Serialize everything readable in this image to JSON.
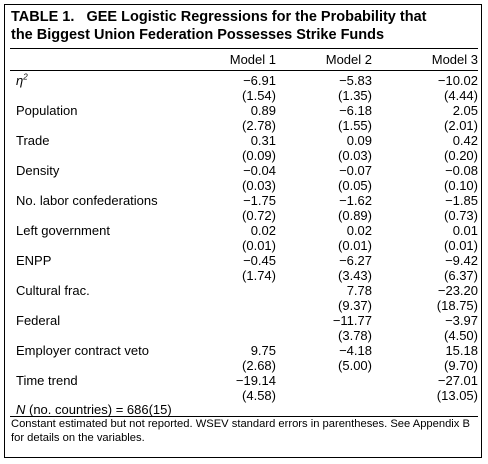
{
  "title": {
    "label": "TABLE 1.",
    "line1": "GEE Logistic Regressions for the Probability that",
    "line2": "the Biggest Union Federation Possesses Strike Funds"
  },
  "columns": [
    "Model 1",
    "Model 2",
    "Model 3"
  ],
  "rows": [
    {
      "var": "η",
      "sup": "2",
      "coef": [
        "−6.91",
        "−5.83",
        "−10.02"
      ],
      "se": [
        "(1.54)",
        "(1.35)",
        "(4.44)"
      ]
    },
    {
      "var": "Population",
      "coef": [
        "0.89",
        "−6.18",
        "2.05"
      ],
      "se": [
        "(2.78)",
        "(1.55)",
        "(2.01)"
      ]
    },
    {
      "var": "Trade",
      "coef": [
        "0.31",
        "0.09",
        "0.42"
      ],
      "se": [
        "(0.09)",
        "(0.03)",
        "(0.20)"
      ]
    },
    {
      "var": "Density",
      "coef": [
        "−0.04",
        "−0.07",
        "−0.08"
      ],
      "se": [
        "(0.03)",
        "(0.05)",
        "(0.10)"
      ]
    },
    {
      "var": "No. labor confederations",
      "coef": [
        "−1.75",
        "−1.62",
        "−1.85"
      ],
      "se": [
        "(0.72)",
        "(0.89)",
        "(0.73)"
      ]
    },
    {
      "var": "Left government",
      "coef": [
        "0.02",
        "0.02",
        "0.01"
      ],
      "se": [
        "(0.01)",
        "(0.01)",
        "(0.01)"
      ]
    },
    {
      "var": "ENPP",
      "coef": [
        "−0.45",
        "−6.27",
        "−9.42"
      ],
      "se": [
        "(1.74)",
        "(3.43)",
        "(6.37)"
      ]
    },
    {
      "var": "Cultural frac.",
      "coef": [
        "",
        "7.78",
        "−23.20"
      ],
      "se": [
        "",
        "(9.37)",
        "(18.75)"
      ]
    },
    {
      "var": "Federal",
      "coef": [
        "",
        "−11.77",
        "−3.97"
      ],
      "se": [
        "",
        "(3.78)",
        "(4.50)"
      ]
    },
    {
      "var": "Employer contract veto",
      "coef": [
        "9.75",
        "−4.18",
        "15.18"
      ],
      "se": [
        "(2.68)",
        "(5.00)",
        "(9.70)"
      ]
    },
    {
      "var": "Time trend",
      "coef": [
        "−19.14",
        "",
        "−27.01"
      ],
      "se": [
        "(4.58)",
        "",
        "(13.05)"
      ]
    }
  ],
  "n_label": "N",
  "n_text": " (no. countries) = 686(15)",
  "note": "Constant estimated but not reported. WSEV standard errors in parentheses. See Appendix B for details on the variables."
}
